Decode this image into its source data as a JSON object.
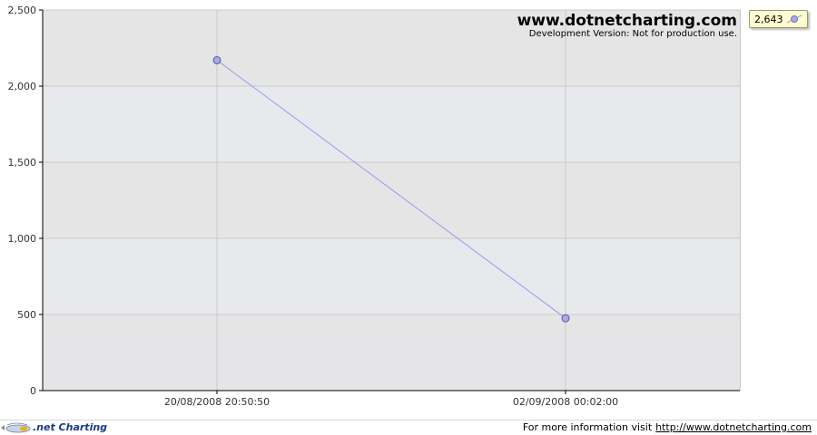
{
  "chart_data": {
    "type": "line",
    "x": [
      "20/08/2008 20:50:50",
      "02/09/2008 00:02:00"
    ],
    "series": [
      {
        "name": "2,643",
        "values": [
          2170,
          475
        ]
      }
    ],
    "ylim": [
      0,
      2500
    ],
    "yticks": [
      "0",
      "500",
      "1,000",
      "1,500",
      "2,000",
      "2,500"
    ],
    "ytick_values": [
      0,
      500,
      1000,
      1500,
      2000,
      2500
    ],
    "grid": true,
    "legend": "top-right",
    "line_color": "#9999ee",
    "marker_color": "#a8a8e8"
  },
  "watermark": {
    "title": "www.dotnetcharting.com",
    "subtitle": "Development Version: Not for production use."
  },
  "footer": {
    "logo_text": ".net Charting",
    "info_text": "For more information visit",
    "link_text": "http://www.dotnetcharting.com"
  },
  "colors": {
    "plot_bg_light": "#e7e9ec",
    "plot_bg_dark": "#e2e2e4",
    "grid": "#cccccc",
    "axis": "#000000"
  }
}
